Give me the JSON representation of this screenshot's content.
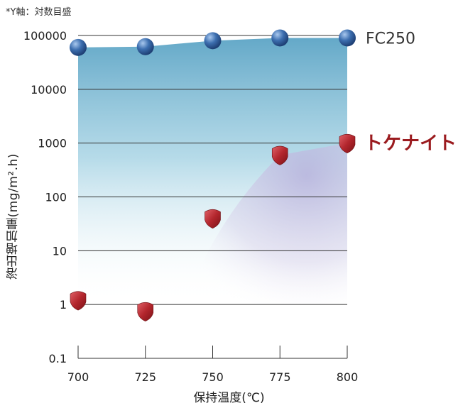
{
  "chart_data": {
    "type": "scatter",
    "note": "*Y軸：対数目盛",
    "xlabel": "保持温度(℃)",
    "ylabel": "溶出増加量(mg/m².h)",
    "y_scale": "log",
    "ylim": [
      0.1,
      100000
    ],
    "xlim": [
      700,
      800
    ],
    "x_ticks": [
      "700",
      "725",
      "750",
      "775",
      "800"
    ],
    "y_ticks": [
      "0.1",
      "1",
      "10",
      "100",
      "1000",
      "10000",
      "100000"
    ],
    "grid": true,
    "series": [
      {
        "name": "FC250",
        "marker": "circle",
        "color": "#3d6fb0",
        "points": [
          {
            "x": 700,
            "y": 60000
          },
          {
            "x": 725,
            "y": 62000
          },
          {
            "x": 750,
            "y": 80000
          },
          {
            "x": 775,
            "y": 90000
          },
          {
            "x": 800,
            "y": 90000
          }
        ]
      },
      {
        "name": "トケナイト",
        "marker": "shield",
        "color": "#a8262c",
        "points": [
          {
            "x": 700,
            "y": 1.2
          },
          {
            "x": 725,
            "y": 0.75
          },
          {
            "x": 750,
            "y": 40
          },
          {
            "x": 775,
            "y": 600
          },
          {
            "x": 800,
            "y": 1000
          }
        ]
      }
    ]
  }
}
